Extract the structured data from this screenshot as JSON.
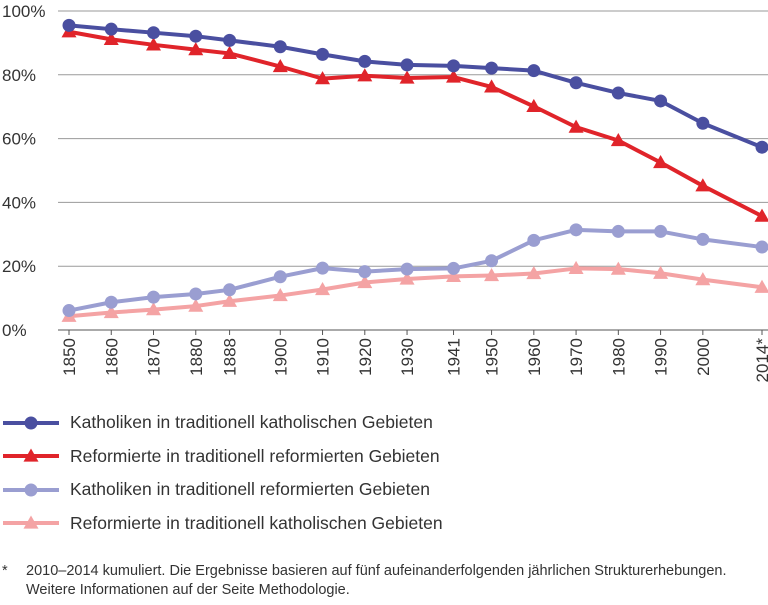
{
  "chart_data": {
    "type": "line",
    "categories": [
      "1850",
      "1860",
      "1870",
      "1880",
      "1888",
      "1900",
      "1910",
      "1920",
      "1930",
      "1941",
      "1950",
      "1960",
      "1970",
      "1980",
      "1990",
      "2000",
      "2014*"
    ],
    "x": [
      1850,
      1860,
      1870,
      1880,
      1888,
      1900,
      1910,
      1920,
      1930,
      1941,
      1950,
      1960,
      1970,
      1980,
      1990,
      2000,
      2014
    ],
    "ylim": [
      0,
      100
    ],
    "yticks": [
      0,
      20,
      40,
      60,
      80,
      100
    ],
    "ytick_labels": [
      "0%",
      "20%",
      "40%",
      "60%",
      "80%",
      "100%"
    ],
    "grid": true,
    "legend_position": "bottom",
    "series": [
      {
        "name": "Katholiken in traditionell katholischen Gebieten",
        "marker": "circle",
        "color": "#4a4fa0",
        "values": [
          95.5,
          94.3,
          93.2,
          92.1,
          90.8,
          88.8,
          86.4,
          84.2,
          83.1,
          82.8,
          82.1,
          81.3,
          77.5,
          74.3,
          71.8,
          64.8,
          57.3
        ]
      },
      {
        "name": "Reformierte in traditionell reformierten Gebieten",
        "marker": "triangle",
        "color": "#e0242a",
        "values": [
          93.5,
          91.1,
          89.4,
          87.9,
          86.7,
          82.6,
          78.8,
          79.7,
          79.0,
          79.3,
          76.2,
          70.1,
          63.6,
          59.4,
          52.5,
          45.2,
          35.7
        ]
      },
      {
        "name": "Katholiken in traditionell reformierten Gebieten",
        "marker": "circle",
        "color": "#9a9ed1",
        "values": [
          6.1,
          8.7,
          10.3,
          11.3,
          12.6,
          16.7,
          19.4,
          18.3,
          19.1,
          19.3,
          21.7,
          28.1,
          31.4,
          30.9,
          30.9,
          28.4,
          26.0
        ]
      },
      {
        "name": "Reformierte in traditionell katholischen Gebieten",
        "marker": "triangle",
        "color": "#f4a3a4",
        "values": [
          4.3,
          5.5,
          6.4,
          7.5,
          9.0,
          10.8,
          12.7,
          14.9,
          16.0,
          16.8,
          17.1,
          17.7,
          19.3,
          19.1,
          17.8,
          15.8,
          13.4
        ]
      }
    ]
  },
  "footnote": {
    "mark": "*",
    "text": "2010–2014 kumuliert. Die Ergebnisse basieren auf fünf aufeinanderfolgenden jährlichen Strukturerhebungen. Weitere Informationen auf der Seite Methodologie."
  }
}
